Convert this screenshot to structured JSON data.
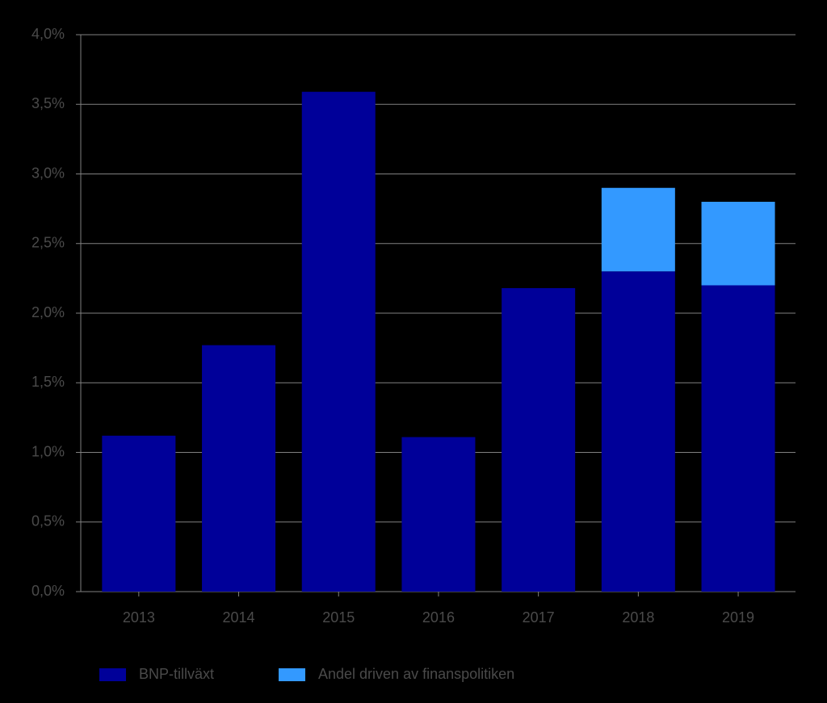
{
  "chart_data": {
    "type": "stacked-bar",
    "categories": [
      "2013",
      "2014",
      "2015",
      "2016",
      "2017",
      "2018",
      "2019"
    ],
    "series": [
      {
        "name": "BNP-tillväxt",
        "color": "#000099",
        "values": [
          1.12,
          1.77,
          3.59,
          1.11,
          2.18,
          2.3,
          2.2
        ]
      },
      {
        "name": "Andel driven av finanspolitiken",
        "color": "#3399ff",
        "values": [
          null,
          null,
          null,
          null,
          null,
          0.6,
          0.6
        ]
      }
    ],
    "ylim": [
      0,
      4
    ],
    "yticks": [
      {
        "value": 0,
        "label": "0,0%"
      },
      {
        "value": 0.5,
        "label": "0,5%"
      },
      {
        "value": 1,
        "label": "1,0%"
      },
      {
        "value": 1.5,
        "label": "1,5%"
      },
      {
        "value": 2,
        "label": "2,0%"
      },
      {
        "value": 2.5,
        "label": "2,5%"
      },
      {
        "value": 3,
        "label": "3,0%"
      },
      {
        "value": 3.5,
        "label": "3,5%"
      },
      {
        "value": 4,
        "label": "4,0%"
      }
    ],
    "grid": true,
    "legend": "bottom"
  }
}
